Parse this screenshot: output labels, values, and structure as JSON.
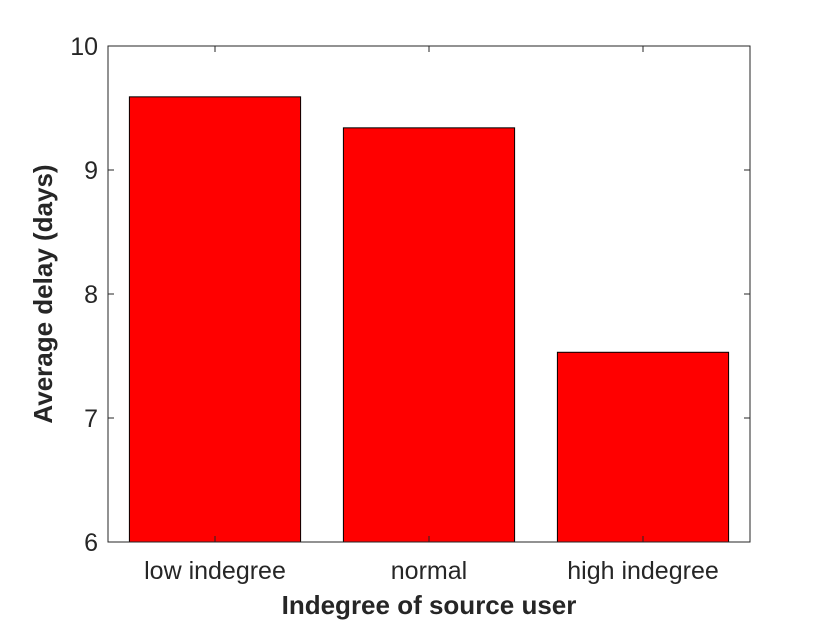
{
  "chart_data": {
    "type": "bar",
    "categories": [
      "low indegree",
      "normal",
      "high indegree"
    ],
    "values": [
      9.59,
      9.34,
      7.53
    ],
    "xlabel": "Indegree of source user",
    "ylabel": "Average delay (days)",
    "ylim": [
      6,
      10
    ],
    "yticks": [
      6,
      7,
      8,
      9,
      10
    ],
    "bar_color": "#ff0000",
    "grid": false
  }
}
